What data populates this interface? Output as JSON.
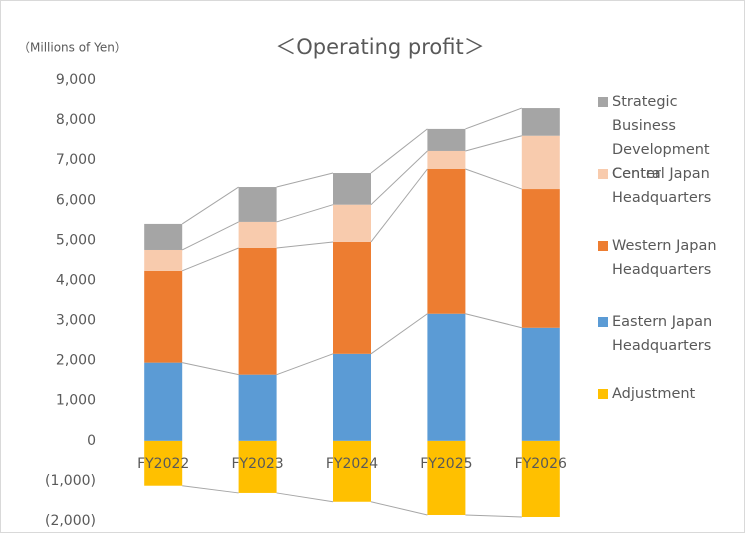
{
  "chart_data": {
    "type": "bar",
    "stacked": true,
    "title": "＜Operating profit＞",
    "y_label": "（Millions of Yen）",
    "categories": [
      "FY2022",
      "FY2023",
      "FY2024",
      "FY2025",
      "FY2026"
    ],
    "series": [
      {
        "name": "Adjustment",
        "color": "#FFC000",
        "values": [
          -1120,
          -1300,
          -1520,
          -1850,
          -1900
        ]
      },
      {
        "name": "Eastern Japan Headquarters",
        "color": "#5B9BD5",
        "values": [
          1950,
          1650,
          2170,
          3170,
          2820
        ]
      },
      {
        "name": "Western Japan Headquarters",
        "color": "#ED7D31",
        "values": [
          2290,
          3160,
          2790,
          3610,
          3460
        ]
      },
      {
        "name": "Central Japan Headquarters",
        "color": "#F8CBAD",
        "values": [
          520,
          650,
          930,
          450,
          1330
        ]
      },
      {
        "name": "Strategic Business Development Center",
        "color": "#A5A5A5",
        "values": [
          650,
          870,
          790,
          550,
          690
        ]
      }
    ],
    "ylim": [
      -2000,
      9000
    ],
    "yticks": [
      {
        "value": -2000,
        "label": "(2,000)"
      },
      {
        "value": -1000,
        "label": "(1,000)"
      },
      0,
      {
        "value": 1000,
        "label": "1,000"
      },
      {
        "value": 2000,
        "label": "2,000"
      },
      {
        "value": 3000,
        "label": "3,000"
      },
      {
        "value": 4000,
        "label": "4,000"
      },
      {
        "value": 5000,
        "label": "5,000"
      },
      {
        "value": 6000,
        "label": "6,000"
      },
      {
        "value": 7000,
        "label": "7,000"
      },
      {
        "value": 8000,
        "label": "8,000"
      },
      {
        "value": 9000,
        "label": "9,000"
      }
    ],
    "grid": false,
    "legend": "right"
  }
}
